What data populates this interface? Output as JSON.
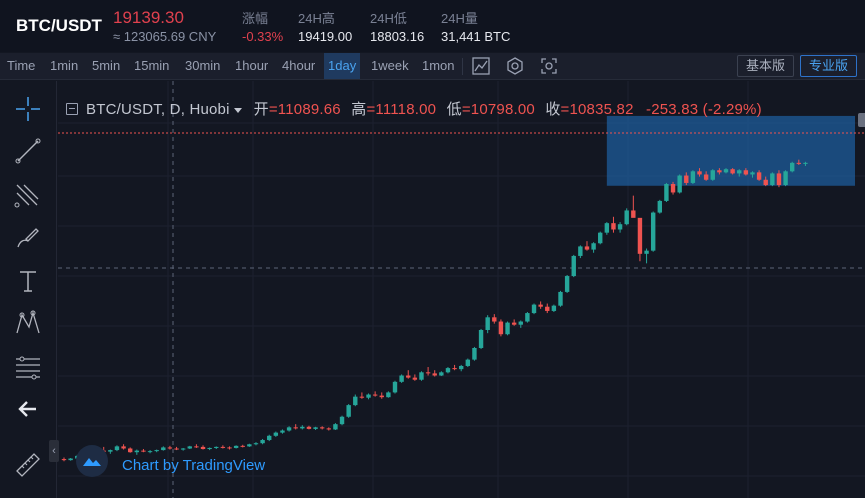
{
  "ticker": {
    "symbol": "BTC/USDT",
    "price": "19139.30",
    "price_cny": "≈ 123065.69 CNY",
    "stats": [
      {
        "label": "涨幅",
        "value": "-0.33%"
      },
      {
        "label": "24H高",
        "value": "19419.00"
      },
      {
        "label": "24H低",
        "value": "18803.16"
      },
      {
        "label": "24H量",
        "value": "31,441 BTC"
      }
    ]
  },
  "toolbar": {
    "timeframes": [
      "Time",
      "1min",
      "5min",
      "15min",
      "30min",
      "1hour",
      "4hour",
      "1day",
      "1week",
      "1mon"
    ],
    "active": "1day",
    "version_basic": "基本版",
    "version_pro": "专业版"
  },
  "legend": {
    "title": "BTC/USDT, D, Huobi",
    "open_label": "开",
    "open": "=11089.66",
    "high_label": "高",
    "high": "=11118.00",
    "low_label": "低",
    "low": "=10798.00",
    "close_label": "收",
    "close": "=10835.82",
    "change": "-253.83 (-2.29%)"
  },
  "branding": {
    "text": "Chart by TradingView"
  },
  "colors": {
    "up": "#26a69a",
    "down": "#ef5350",
    "selection": "#1e5c9b",
    "accent": "#2e9bff"
  },
  "chart_data": {
    "type": "candlestick",
    "candles_ohlc": [
      [
        4820,
        4850,
        4780,
        4800
      ],
      [
        4800,
        4840,
        4790,
        4830
      ],
      [
        4830,
        4900,
        4810,
        4880
      ],
      [
        4880,
        4920,
        4860,
        4870
      ],
      [
        4870,
        4910,
        4850,
        4900
      ],
      [
        4900,
        5000,
        4880,
        4980
      ],
      [
        4980,
        5050,
        4950,
        4960
      ],
      [
        4960,
        5000,
        4920,
        4990
      ],
      [
        4990,
        5080,
        4970,
        5060
      ],
      [
        5060,
        5100,
        5000,
        5020
      ],
      [
        5020,
        5040,
        4940,
        4950
      ],
      [
        4950,
        5000,
        4900,
        4980
      ],
      [
        4980,
        5010,
        4950,
        4960
      ],
      [
        4960,
        4990,
        4930,
        4970
      ],
      [
        4970,
        5000,
        4950,
        4990
      ],
      [
        4990,
        5060,
        4980,
        5040
      ],
      [
        5040,
        5070,
        5000,
        5020
      ],
      [
        5020,
        5050,
        4990,
        5000
      ],
      [
        5000,
        5030,
        4980,
        5020
      ],
      [
        5020,
        5070,
        5010,
        5060
      ],
      [
        5060,
        5100,
        5030,
        5050
      ],
      [
        5050,
        5080,
        5000,
        5010
      ],
      [
        5010,
        5040,
        4990,
        5030
      ],
      [
        5030,
        5060,
        5010,
        5050
      ],
      [
        5050,
        5080,
        5020,
        5040
      ],
      [
        5040,
        5060,
        5000,
        5030
      ],
      [
        5030,
        5080,
        5020,
        5070
      ],
      [
        5070,
        5090,
        5040,
        5060
      ],
      [
        5060,
        5110,
        5050,
        5100
      ],
      [
        5100,
        5140,
        5080,
        5120
      ],
      [
        5120,
        5200,
        5100,
        5180
      ],
      [
        5180,
        5280,
        5160,
        5260
      ],
      [
        5260,
        5340,
        5240,
        5320
      ],
      [
        5320,
        5380,
        5300,
        5360
      ],
      [
        5360,
        5440,
        5340,
        5420
      ],
      [
        5420,
        5480,
        5380,
        5400
      ],
      [
        5400,
        5460,
        5380,
        5430
      ],
      [
        5430,
        5450,
        5380,
        5390
      ],
      [
        5390,
        5430,
        5370,
        5420
      ],
      [
        5420,
        5440,
        5380,
        5400
      ],
      [
        5400,
        5420,
        5360,
        5380
      ],
      [
        5380,
        5500,
        5370,
        5480
      ],
      [
        5480,
        5640,
        5460,
        5620
      ],
      [
        5620,
        5860,
        5600,
        5840
      ],
      [
        5840,
        6040,
        5820,
        6000
      ],
      [
        6000,
        6080,
        5960,
        5980
      ],
      [
        5980,
        6060,
        5950,
        6040
      ],
      [
        6040,
        6100,
        6000,
        6020
      ],
      [
        6020,
        6080,
        5960,
        5990
      ],
      [
        5990,
        6100,
        5980,
        6080
      ],
      [
        6080,
        6300,
        6060,
        6280
      ],
      [
        6280,
        6420,
        6260,
        6400
      ],
      [
        6400,
        6500,
        6340,
        6360
      ],
      [
        6360,
        6420,
        6300,
        6320
      ],
      [
        6320,
        6480,
        6300,
        6460
      ],
      [
        6460,
        6560,
        6400,
        6440
      ],
      [
        6440,
        6500,
        6380,
        6400
      ],
      [
        6400,
        6480,
        6390,
        6460
      ],
      [
        6460,
        6560,
        6440,
        6540
      ],
      [
        6540,
        6600,
        6500,
        6520
      ],
      [
        6520,
        6600,
        6480,
        6580
      ],
      [
        6580,
        6720,
        6560,
        6700
      ],
      [
        6700,
        6940,
        6680,
        6920
      ],
      [
        6920,
        7280,
        6900,
        7260
      ],
      [
        7260,
        7540,
        7200,
        7500
      ],
      [
        7500,
        7560,
        7380,
        7420
      ],
      [
        7420,
        7460,
        7140,
        7180
      ],
      [
        7180,
        7420,
        7160,
        7400
      ],
      [
        7400,
        7460,
        7340,
        7360
      ],
      [
        7360,
        7440,
        7300,
        7420
      ],
      [
        7420,
        7600,
        7400,
        7580
      ],
      [
        7580,
        7760,
        7560,
        7740
      ],
      [
        7740,
        7800,
        7660,
        7700
      ],
      [
        7700,
        7760,
        7580,
        7620
      ],
      [
        7620,
        7740,
        7600,
        7720
      ],
      [
        7720,
        8000,
        7700,
        7980
      ],
      [
        7980,
        8300,
        7960,
        8280
      ],
      [
        8280,
        8680,
        8260,
        8660
      ],
      [
        8660,
        8860,
        8620,
        8840
      ],
      [
        8840,
        8940,
        8760,
        8780
      ],
      [
        8780,
        8920,
        8720,
        8900
      ],
      [
        8900,
        9120,
        8880,
        9100
      ],
      [
        9100,
        9300,
        9060,
        9280
      ],
      [
        9280,
        9400,
        9100,
        9160
      ],
      [
        9160,
        9300,
        9100,
        9260
      ],
      [
        9260,
        9560,
        9240,
        9520
      ],
      [
        9520,
        9800,
        9460,
        9380
      ],
      [
        9380,
        8900,
        8560,
        8700
      ],
      [
        8700,
        8800,
        8520,
        8760
      ],
      [
        8760,
        9500,
        8740,
        9480
      ],
      [
        9480,
        9720,
        9460,
        9700
      ],
      [
        9700,
        10040,
        9680,
        10020
      ],
      [
        10020,
        10060,
        9820,
        9860
      ],
      [
        9860,
        10200,
        9840,
        10180
      ],
      [
        10180,
        10240,
        10000,
        10040
      ],
      [
        10040,
        10280,
        10020,
        10260
      ],
      [
        10260,
        10320,
        10160,
        10200
      ],
      [
        10200,
        10260,
        10080,
        10100
      ],
      [
        10100,
        10300,
        10080,
        10280
      ],
      [
        10280,
        10320,
        10200,
        10240
      ],
      [
        10240,
        10320,
        10220,
        10300
      ],
      [
        10300,
        10320,
        10200,
        10220
      ],
      [
        10220,
        10300,
        10160,
        10280
      ],
      [
        10280,
        10320,
        10180,
        10200
      ],
      [
        10200,
        10260,
        10140,
        10240
      ],
      [
        10240,
        10280,
        10080,
        10100
      ],
      [
        10100,
        10160,
        9980,
        10000
      ],
      [
        10000,
        10240,
        9980,
        10220
      ],
      [
        10220,
        10280,
        9960,
        10000
      ],
      [
        10000,
        10280,
        9980,
        10260
      ],
      [
        10260,
        10440,
        10240,
        10420
      ],
      [
        10420,
        10480,
        10380,
        10400
      ],
      [
        10400,
        10440,
        10360,
        10420
      ]
    ],
    "selection_box": {
      "price_top": 11118,
      "price_bottom": 10100
    }
  }
}
